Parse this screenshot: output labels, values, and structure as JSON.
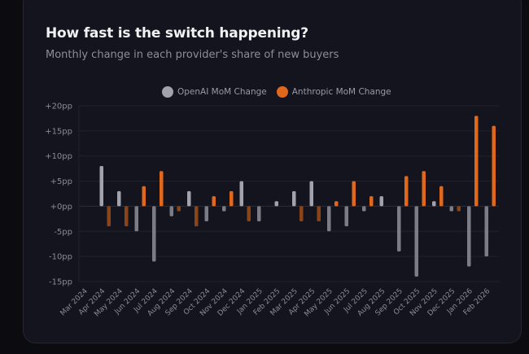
{
  "title": "How fast is the switch happening?",
  "subtitle": "Monthly change in each provider's share of new buyers",
  "chart_data": {
    "type": "bar",
    "title": "How fast is the switch happening?",
    "subtitle": "Monthly change in each provider's share of new buyers",
    "xlabel": "",
    "ylabel": "",
    "ylim": [
      -15,
      20
    ],
    "yticks": [
      20,
      15,
      10,
      5,
      0,
      -5,
      -10,
      -15
    ],
    "ytick_labels": [
      "+20pp",
      "+15pp",
      "+10pp",
      "+5pp",
      "+0pp",
      "-5pp",
      "-10pp",
      "-15pp"
    ],
    "grid": true,
    "legend_position": "top-center",
    "categories": [
      "Mar 2024",
      "Apr 2024",
      "May 2024",
      "Jun 2024",
      "Jul 2024",
      "Aug 2024",
      "Sep 2024",
      "Oct 2024",
      "Nov 2024",
      "Dec 2024",
      "Jan 2025",
      "Feb 2025",
      "Mar 2025",
      "Apr 2025",
      "May 2025",
      "Jun 2025",
      "Jul 2025",
      "Aug 2025",
      "Sep 2025",
      "Oct 2025",
      "Nov 2025",
      "Dec 2025",
      "Jan 2026",
      "Feb 2026"
    ],
    "series": [
      {
        "name": "OpenAI MoM Change",
        "color": "#a2a2ac",
        "negative_color": "#7c7c86",
        "values": [
          0,
          8,
          3,
          -5,
          -11,
          -2,
          3,
          -3,
          -1,
          5,
          -3,
          1,
          3,
          5,
          -5,
          -4,
          -1,
          2,
          -9,
          -14,
          1,
          -1,
          -12,
          -10
        ]
      },
      {
        "name": "Anthropic MoM Change",
        "color": "#e0681c",
        "negative_color": "#8a4418",
        "values": [
          0,
          -4,
          -4,
          4,
          7,
          -1,
          -4,
          2,
          3,
          -3,
          0,
          0,
          -3,
          -3,
          1,
          5,
          2,
          0,
          6,
          7,
          4,
          -1,
          18,
          16
        ]
      }
    ]
  }
}
